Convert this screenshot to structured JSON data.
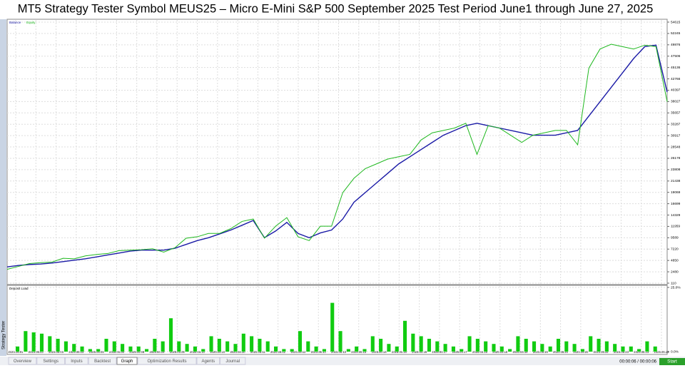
{
  "title": "MT5 Strategy Tester  Symbol MEUS25 – Micro E-Mini S&P 500 September 2025 Test Period June1 through June 27, 2025",
  "side_label": "Strategy Tester",
  "tabs": [
    "Overview",
    "Settings",
    "Inputs",
    "Backtest",
    "Graph",
    "Optimization Results",
    "Agents",
    "Journal"
  ],
  "active_tab": 4,
  "status": "00:00:06 / 00:00:06",
  "button": "Start",
  "chart_data": [
    {
      "type": "line",
      "grid": true,
      "ylim": [
        110,
        54615
      ],
      "yticks": [
        110,
        2480,
        4850,
        7220,
        9589,
        11959,
        14329,
        16699,
        19069,
        21438,
        23808,
        26178,
        28548,
        30917,
        33287,
        35657,
        38027,
        40397,
        42766,
        45136,
        47506,
        49876,
        52245,
        54615
      ],
      "series": [
        {
          "name": "Balance",
          "color": "#1a1aa6",
          "values": [
            3500,
            3800,
            4000,
            4100,
            4300,
            4600,
            4900,
            5200,
            5600,
            6000,
            6400,
            6800,
            7000,
            7000,
            7000,
            7400,
            8200,
            9000,
            9600,
            10400,
            11200,
            12200,
            13200,
            9600,
            11000,
            12800,
            10500,
            9600,
            10600,
            11200,
            13500,
            17000,
            19000,
            21000,
            23000,
            25000,
            26500,
            28000,
            29500,
            31000,
            32000,
            33000,
            33500,
            33000,
            32500,
            32000,
            31500,
            31000,
            31000,
            31000,
            31500,
            32000,
            35000,
            38000,
            41000,
            44000,
            47000,
            49500,
            49800,
            40000
          ]
        },
        {
          "name": "Equity",
          "color": "#1fb81f",
          "values": [
            3000,
            3600,
            4200,
            4400,
            4500,
            5300,
            5200,
            5800,
            6100,
            6300,
            6900,
            7000,
            7100,
            7300,
            6600,
            7500,
            9500,
            9800,
            10500,
            10500,
            11500,
            13000,
            13500,
            9500,
            12000,
            13800,
            9800,
            9000,
            12000,
            12000,
            19000,
            22000,
            24000,
            25000,
            26000,
            26500,
            27000,
            30000,
            31500,
            32000,
            32500,
            33500,
            27000,
            33000,
            32500,
            31000,
            29500,
            31000,
            31500,
            32000,
            32000,
            29000,
            45000,
            49000,
            50000,
            49500,
            49000,
            49800,
            49500,
            38000
          ]
        }
      ]
    },
    {
      "type": "bar",
      "title": "Deposit Load",
      "color": "#11cc11",
      "ylim": [
        0,
        25
      ],
      "yticks": [
        {
          "value": 0,
          "label": "0.0%"
        },
        {
          "value": 25,
          "label": "25.0%"
        }
      ],
      "values": [
        2,
        8,
        7.5,
        7,
        6,
        5,
        4,
        3,
        2,
        1,
        1,
        5,
        4,
        3,
        2,
        2,
        1,
        5,
        4,
        13,
        4,
        3,
        2,
        1,
        6,
        5,
        4,
        3,
        7,
        6,
        5,
        4,
        2,
        1,
        1,
        8,
        4,
        2,
        1,
        19,
        8,
        1,
        2,
        1,
        6,
        5,
        3,
        2,
        12,
        7,
        6,
        5,
        4,
        3,
        2,
        1,
        6,
        5,
        4,
        3,
        2,
        1,
        6,
        5,
        4,
        3,
        2,
        5,
        4,
        3,
        1,
        6,
        5,
        4,
        3,
        2,
        2,
        1,
        4,
        2
      ],
      "x_labels": [
        "2025.06.01",
        "2025.06.05",
        "2025.06.05",
        "2025.06.05",
        "2025.06.05",
        "2025.06.06",
        "2025.06.06",
        "2025.06.09",
        "2025.06.09",
        "2025.06.10",
        "2025.06.10",
        "2025.06.10",
        "2025.06.11",
        "2025.06.12",
        "2025.06.12",
        "2025.06.13",
        "2025.06.13",
        "2025.06.13",
        "2025.06.16",
        "2025.06.16",
        "2025.06.16",
        "2025.06.17",
        "2025.06.17",
        "2025.06.18",
        "2025.06.18",
        "2025.06.19",
        "2025.06.19",
        "2025.06.20",
        "2025.06.20",
        "2025.06.22",
        "2025.06.23",
        "2025.06.23",
        "2025.06.23"
      ]
    }
  ]
}
